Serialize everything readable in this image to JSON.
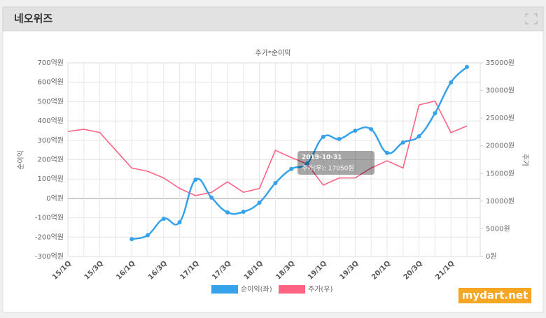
{
  "header": {
    "title": "네오위즈"
  },
  "chart_data": {
    "type": "line",
    "title": "주가*순이익",
    "categories": [
      "15/1Q",
      null,
      "15/3Q",
      null,
      "16/1Q",
      null,
      "16/3Q",
      null,
      "17/1Q",
      null,
      "17/3Q",
      null,
      "18/1Q",
      null,
      "18/3Q",
      null,
      "19/1Q",
      null,
      "19/3Q",
      null,
      "20/1Q",
      null,
      "20/3Q",
      null,
      "21/1Q",
      null
    ],
    "ylabel": "순이익",
    "y2label": "주가",
    "ylim": [
      -300,
      700
    ],
    "yticks": [
      {
        "value": -300,
        "label": "-300억원"
      },
      {
        "value": -200,
        "label": "-200억원"
      },
      {
        "value": -100,
        "label": "-100억원"
      },
      {
        "value": 0,
        "label": "0억원"
      },
      {
        "value": 100,
        "label": "100억원"
      },
      {
        "value": 200,
        "label": "200억원"
      },
      {
        "value": 300,
        "label": "300억원"
      },
      {
        "value": 400,
        "label": "400억원"
      },
      {
        "value": 500,
        "label": "500억원"
      },
      {
        "value": 600,
        "label": "600억원"
      },
      {
        "value": 700,
        "label": "700억원"
      }
    ],
    "y2lim": [
      0,
      35000
    ],
    "y2ticks": [
      {
        "value": 0,
        "label": "0원"
      },
      {
        "value": 5000,
        "label": "5000원"
      },
      {
        "value": 10000,
        "label": "10000원"
      },
      {
        "value": 15000,
        "label": "15000원"
      },
      {
        "value": 20000,
        "label": "20000원"
      },
      {
        "value": 25000,
        "label": "25000원"
      },
      {
        "value": 30000,
        "label": "30000원"
      },
      {
        "value": 35000,
        "label": "35000원"
      }
    ],
    "grid": true,
    "series": [
      {
        "name": "순이익(좌)",
        "color": "#36a2eb",
        "smooth": true,
        "markers": true,
        "values": [
          null,
          null,
          null,
          null,
          -210,
          -190,
          -105,
          -123,
          97,
          4,
          -72,
          -69,
          -22,
          79,
          152,
          181,
          318,
          307,
          350,
          357,
          235,
          289,
          321,
          440,
          599,
          679
        ]
      },
      {
        "name": "주가(우)",
        "color": "#ff6384",
        "axis": "y2",
        "smooth": false,
        "markers": false,
        "values": [
          22600,
          23000,
          22400,
          19200,
          16000,
          15400,
          14200,
          12300,
          11000,
          11600,
          13500,
          11600,
          12300,
          19200,
          17900,
          16700,
          12900,
          14200,
          14200,
          16000,
          17300,
          16000,
          27400,
          28100,
          22400,
          23600
        ]
      }
    ],
    "legend": "bottom",
    "tooltip": {
      "title": "2019-10-31",
      "body": "주가(우): 17050원"
    }
  },
  "watermark": "mydart.net"
}
